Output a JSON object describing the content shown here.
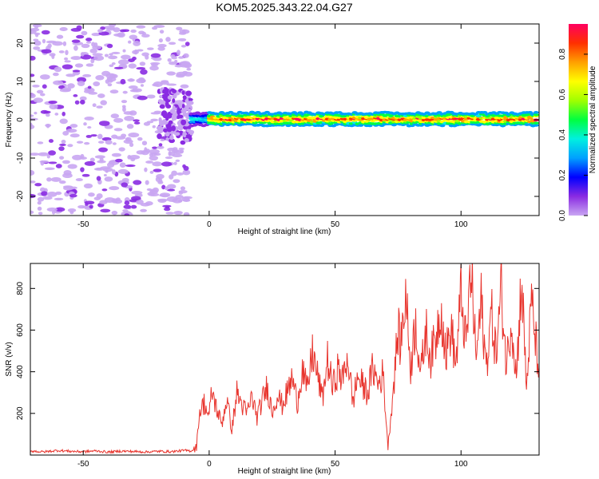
{
  "title": "KOM5.2025.343.22.04.G27",
  "colors": {
    "snr_line": "#e8352e",
    "axis": "#000000",
    "colorbar": [
      "#c9a6f2",
      "#8a2be2",
      "#0000ff",
      "#00a0ff",
      "#00f0e0",
      "#00ff40",
      "#a0ff00",
      "#ffff00",
      "#ffa000",
      "#ff3000",
      "#ff0060"
    ]
  },
  "chart_data": [
    {
      "type": "heatmap",
      "name": "spectrogram",
      "xlabel": "Height of straight line (km)",
      "ylabel": "Frequency (Hz)",
      "xlim": [
        -71,
        131
      ],
      "ylim": [
        -25,
        25
      ],
      "xticks": [
        -50,
        0,
        50,
        100
      ],
      "xtick_labels": [
        "-50",
        "0",
        "50",
        "100"
      ],
      "yticks": [
        -20,
        -10,
        0,
        10,
        20
      ],
      "ytick_labels": [
        "-20",
        "-10",
        "0",
        "10",
        "20"
      ],
      "description_series": [
        {
          "name": "noise region",
          "x_range": [
            -71,
            -8
          ],
          "y_range": [
            -25,
            25
          ],
          "amplitude": [
            0.0,
            0.25
          ]
        },
        {
          "name": "transition",
          "x_range": [
            -20,
            -7
          ],
          "y_range": [
            -6,
            8
          ],
          "amplitude": [
            0.1,
            0.3
          ]
        },
        {
          "name": "signal line",
          "x_range": [
            -7,
            131
          ],
          "y_center": 0.2,
          "y_halfwidth": 1.5,
          "amplitude": [
            0.2,
            1.0
          ]
        }
      ],
      "colorbar": {
        "label": "Normalized spectral amplitude",
        "range": [
          0.0,
          0.95
        ],
        "ticks": [
          0.0,
          0.2,
          0.4,
          0.6,
          0.8
        ],
        "tick_labels": [
          "0.0",
          "0.2",
          "0.4",
          "0.6",
          "0.8"
        ]
      }
    },
    {
      "type": "line",
      "name": "snr",
      "xlabel": "Height of straight line (km)",
      "ylabel": "SNR (v/v)",
      "xlim": [
        -71,
        131
      ],
      "ylim": [
        0,
        920
      ],
      "xticks": [
        -50,
        0,
        50,
        100
      ],
      "xtick_labels": [
        "-50",
        "0",
        "50",
        "100"
      ],
      "yticks": [
        200,
        400,
        600,
        800
      ],
      "ytick_labels": [
        "200",
        "400",
        "600",
        "800"
      ],
      "series": [
        {
          "name": "SNR",
          "x": [
            -71,
            -66,
            -60,
            -55,
            -50,
            -45,
            -40,
            -35,
            -30,
            -25,
            -20,
            -15,
            -10,
            -7,
            -5,
            -4,
            -2,
            0,
            1,
            3,
            5,
            7,
            9,
            11,
            13,
            15,
            17,
            19,
            21,
            23,
            25,
            27,
            29,
            31,
            33,
            35,
            37,
            39,
            41,
            43,
            45,
            47,
            49,
            51,
            53,
            55,
            57,
            59,
            61,
            63,
            65,
            67,
            69,
            71,
            73,
            75,
            76,
            78,
            80,
            82,
            84,
            86,
            88,
            90,
            92,
            94,
            96,
            98,
            100,
            102,
            104,
            106,
            108,
            110,
            112,
            114,
            116,
            118,
            120,
            122,
            124,
            126,
            128,
            130,
            131
          ],
          "y": [
            20,
            15,
            22,
            18,
            16,
            20,
            14,
            19,
            17,
            15,
            18,
            16,
            22,
            20,
            40,
            200,
            250,
            180,
            310,
            220,
            150,
            270,
            120,
            300,
            240,
            200,
            280,
            180,
            260,
            330,
            210,
            290,
            240,
            300,
            370,
            250,
            420,
            300,
            500,
            380,
            270,
            460,
            320,
            410,
            360,
            480,
            250,
            380,
            330,
            300,
            420,
            340,
            390,
            40,
            300,
            600,
            520,
            780,
            420,
            650,
            380,
            600,
            470,
            560,
            720,
            480,
            610,
            430,
            780,
            520,
            900,
            460,
            730,
            420,
            680,
            480,
            800,
            430,
            660,
            380,
            860,
            320,
            740,
            500,
            420
          ]
        }
      ]
    }
  ]
}
